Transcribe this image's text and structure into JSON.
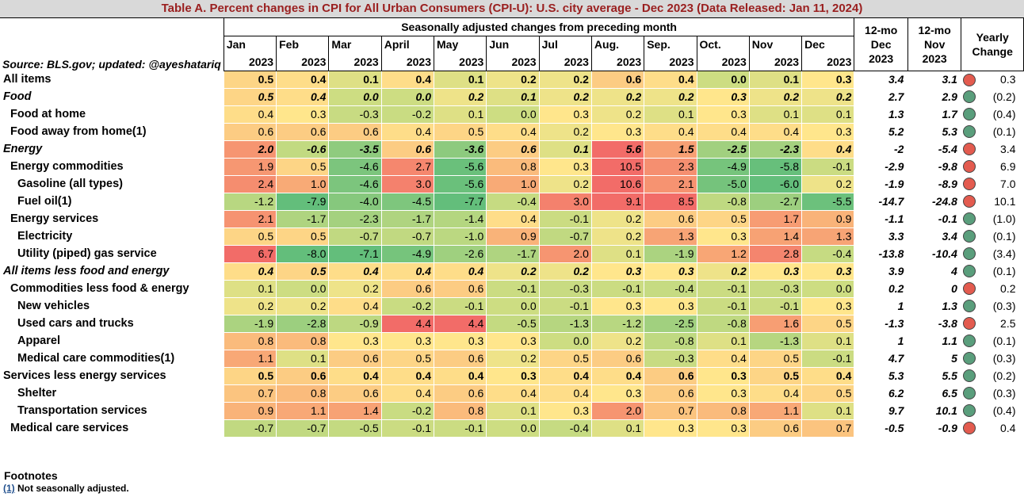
{
  "title": "Table A. Percent changes in CPI for All Urban Consumers (CPI-U): U.S. city average - Dec 2023 (Data Released: Jan 11, 2024)",
  "super_header": "Seasonally adjusted changes from preceding month",
  "source_note": "Source: BLS.gov; updated: @ayeshatariq",
  "months": [
    "Jan",
    "Feb",
    "Mar",
    "April",
    "May",
    "Jun",
    "Jul",
    "Aug.",
    "Sep.",
    "Oct.",
    "Nov",
    "Dec"
  ],
  "year_label": "2023",
  "col_12mo_dec": [
    "12-mo",
    "Dec",
    "2023"
  ],
  "col_12mo_nov": [
    "12-mo",
    "Nov",
    "2023"
  ],
  "col_yearly": [
    "Yearly",
    "Change"
  ],
  "colors": {
    "red": "#e35b4f",
    "green": "#5a9e7c",
    "title": "#9a1f1f"
  },
  "chart_data": {
    "type": "table",
    "title": "Table A. Percent changes in CPI for All Urban Consumers (CPI-U): U.S. city average - Dec 2023 (Data Released: Jan 11, 2024)",
    "rows": [
      {
        "label": "All items",
        "indent": 0,
        "style": "bold",
        "values": [
          "0.5",
          "0.4",
          "0.1",
          "0.4",
          "0.1",
          "0.2",
          "0.2",
          "0.6",
          "0.4",
          "0.0",
          "0.1",
          "0.3"
        ],
        "dec12": "3.4",
        "nov12": "3.1",
        "yearly": "0.3",
        "dot": "red"
      },
      {
        "label": "Food",
        "indent": 0,
        "style": "italic",
        "values": [
          "0.5",
          "0.4",
          "0.0",
          "0.0",
          "0.2",
          "0.1",
          "0.2",
          "0.2",
          "0.2",
          "0.3",
          "0.2",
          "0.2"
        ],
        "dec12": "2.7",
        "nov12": "2.9",
        "yearly": "(0.2)",
        "dot": "green"
      },
      {
        "label": "Food at home",
        "indent": 1,
        "style": "normal",
        "values": [
          "0.4",
          "0.3",
          "-0.3",
          "-0.2",
          "0.1",
          "0.0",
          "0.3",
          "0.2",
          "0.1",
          "0.3",
          "0.1",
          "0.1"
        ],
        "dec12": "1.3",
        "nov12": "1.7",
        "yearly": "(0.4)",
        "dot": "green"
      },
      {
        "label": "Food away from home(1)",
        "indent": 1,
        "style": "normal",
        "values": [
          "0.6",
          "0.6",
          "0.6",
          "0.4",
          "0.5",
          "0.4",
          "0.2",
          "0.3",
          "0.4",
          "0.4",
          "0.4",
          "0.3"
        ],
        "dec12": "5.2",
        "nov12": "5.3",
        "yearly": "(0.1)",
        "dot": "green"
      },
      {
        "label": "Energy",
        "indent": 0,
        "style": "italic",
        "values": [
          "2.0",
          "-0.6",
          "-3.5",
          "0.6",
          "-3.6",
          "0.6",
          "0.1",
          "5.6",
          "1.5",
          "-2.5",
          "-2.3",
          "0.4"
        ],
        "dec12": "-2",
        "nov12": "-5.4",
        "yearly": "3.4",
        "dot": "red"
      },
      {
        "label": "Energy commodities",
        "indent": 1,
        "style": "normal",
        "values": [
          "1.9",
          "0.5",
          "-4.6",
          "2.7",
          "-5.6",
          "0.8",
          "0.3",
          "10.5",
          "2.3",
          "-4.9",
          "-5.8",
          "-0.1"
        ],
        "dec12": "-2.9",
        "nov12": "-9.8",
        "yearly": "6.9",
        "dot": "red"
      },
      {
        "label": "Gasoline (all types)",
        "indent": 2,
        "style": "normal",
        "values": [
          "2.4",
          "1.0",
          "-4.6",
          "3.0",
          "-5.6",
          "1.0",
          "0.2",
          "10.6",
          "2.1",
          "-5.0",
          "-6.0",
          "0.2"
        ],
        "dec12": "-1.9",
        "nov12": "-8.9",
        "yearly": "7.0",
        "dot": "red"
      },
      {
        "label": "Fuel oil(1)",
        "indent": 2,
        "style": "normal",
        "values": [
          "-1.2",
          "-7.9",
          "-4.0",
          "-4.5",
          "-7.7",
          "-0.4",
          "3.0",
          "9.1",
          "8.5",
          "-0.8",
          "-2.7",
          "-5.5"
        ],
        "dec12": "-14.7",
        "nov12": "-24.8",
        "yearly": "10.1",
        "dot": "red"
      },
      {
        "label": "Energy services",
        "indent": 1,
        "style": "normal",
        "values": [
          "2.1",
          "-1.7",
          "-2.3",
          "-1.7",
          "-1.4",
          "0.4",
          "-0.1",
          "0.2",
          "0.6",
          "0.5",
          "1.7",
          "0.9"
        ],
        "dec12": "-1.1",
        "nov12": "-0.1",
        "yearly": "(1.0)",
        "dot": "green"
      },
      {
        "label": "Electricity",
        "indent": 2,
        "style": "normal",
        "values": [
          "0.5",
          "0.5",
          "-0.7",
          "-0.7",
          "-1.0",
          "0.9",
          "-0.7",
          "0.2",
          "1.3",
          "0.3",
          "1.4",
          "1.3"
        ],
        "dec12": "3.3",
        "nov12": "3.4",
        "yearly": "(0.1)",
        "dot": "green"
      },
      {
        "label": "Utility (piped) gas service",
        "indent": 2,
        "style": "normal",
        "values": [
          "6.7",
          "-8.0",
          "-7.1",
          "-4.9",
          "-2.6",
          "-1.7",
          "2.0",
          "0.1",
          "-1.9",
          "1.2",
          "2.8",
          "-0.4"
        ],
        "dec12": "-13.8",
        "nov12": "-10.4",
        "yearly": "(3.4)",
        "dot": "green"
      },
      {
        "label": "All items less food and energy",
        "indent": 0,
        "style": "italic",
        "values": [
          "0.4",
          "0.5",
          "0.4",
          "0.4",
          "0.4",
          "0.2",
          "0.2",
          "0.3",
          "0.3",
          "0.2",
          "0.3",
          "0.3"
        ],
        "dec12": "3.9",
        "nov12": "4",
        "yearly": "(0.1)",
        "dot": "green"
      },
      {
        "label": "Commodities less food & energy",
        "indent": 1,
        "style": "normal",
        "values": [
          "0.1",
          "0.0",
          "0.2",
          "0.6",
          "0.6",
          "-0.1",
          "-0.3",
          "-0.1",
          "-0.4",
          "-0.1",
          "-0.3",
          "0.0"
        ],
        "dec12": "0.2",
        "nov12": "0",
        "yearly": "0.2",
        "dot": "red"
      },
      {
        "label": "New vehicles",
        "indent": 2,
        "style": "normal",
        "values": [
          "0.2",
          "0.2",
          "0.4",
          "-0.2",
          "-0.1",
          "0.0",
          "-0.1",
          "0.3",
          "0.3",
          "-0.1",
          "-0.1",
          "0.3"
        ],
        "dec12": "1",
        "nov12": "1.3",
        "yearly": "(0.3)",
        "dot": "green"
      },
      {
        "label": "Used cars and trucks",
        "indent": 2,
        "style": "normal",
        "values": [
          "-1.9",
          "-2.8",
          "-0.9",
          "4.4",
          "4.4",
          "-0.5",
          "-1.3",
          "-1.2",
          "-2.5",
          "-0.8",
          "1.6",
          "0.5"
        ],
        "dec12": "-1.3",
        "nov12": "-3.8",
        "yearly": "2.5",
        "dot": "red"
      },
      {
        "label": "Apparel",
        "indent": 2,
        "style": "normal",
        "values": [
          "0.8",
          "0.8",
          "0.3",
          "0.3",
          "0.3",
          "0.3",
          "0.0",
          "0.2",
          "-0.8",
          "0.1",
          "-1.3",
          "0.1"
        ],
        "dec12": "1",
        "nov12": "1.1",
        "yearly": "(0.1)",
        "dot": "green"
      },
      {
        "label": "Medical care commodities(1)",
        "indent": 2,
        "style": "normal",
        "values": [
          "1.1",
          "0.1",
          "0.6",
          "0.5",
          "0.6",
          "0.2",
          "0.5",
          "0.6",
          "-0.3",
          "0.4",
          "0.5",
          "-0.1"
        ],
        "dec12": "4.7",
        "nov12": "5",
        "yearly": "(0.3)",
        "dot": "green"
      },
      {
        "label": "Services less energy services",
        "indent": 0,
        "style": "boldnum",
        "values": [
          "0.5",
          "0.6",
          "0.4",
          "0.4",
          "0.4",
          "0.3",
          "0.4",
          "0.4",
          "0.6",
          "0.3",
          "0.5",
          "0.4"
        ],
        "dec12": "5.3",
        "nov12": "5.5",
        "yearly": "(0.2)",
        "dot": "green"
      },
      {
        "label": "Shelter",
        "indent": 2,
        "style": "normal",
        "values": [
          "0.7",
          "0.8",
          "0.6",
          "0.4",
          "0.6",
          "0.4",
          "0.4",
          "0.3",
          "0.6",
          "0.3",
          "0.4",
          "0.5"
        ],
        "dec12": "6.2",
        "nov12": "6.5",
        "yearly": "(0.3)",
        "dot": "green"
      },
      {
        "label": "Transportation services",
        "indent": 2,
        "style": "normal",
        "values": [
          "0.9",
          "1.1",
          "1.4",
          "-0.2",
          "0.8",
          "0.1",
          "0.3",
          "2.0",
          "0.7",
          "0.8",
          "1.1",
          "0.1"
        ],
        "dec12": "9.7",
        "nov12": "10.1",
        "yearly": "(0.4)",
        "dot": "green"
      },
      {
        "label": "Medical care services",
        "indent": 1,
        "style": "normal",
        "values": [
          "-0.7",
          "-0.7",
          "-0.5",
          "-0.1",
          "-0.1",
          "0.0",
          "-0.4",
          "0.1",
          "0.3",
          "0.3",
          "0.6",
          "0.7"
        ],
        "dec12": "-0.5",
        "nov12": "-0.9",
        "yearly": "0.4",
        "dot": "red"
      }
    ]
  },
  "footnotes_title": "Footnotes",
  "footnote_id": "(1)",
  "footnote_text": "Not seasonally adjusted."
}
